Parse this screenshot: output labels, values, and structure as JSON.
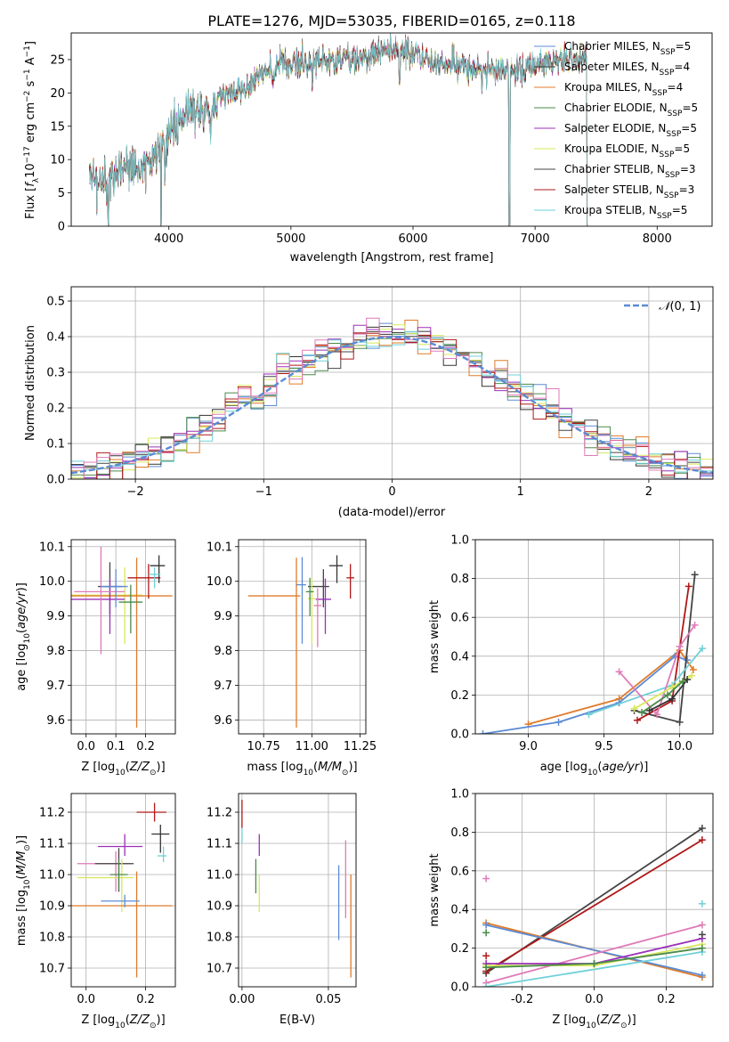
{
  "title": "PLATE=1276, MJD=53035, FIBERID=0165, z=0.118",
  "colors": {
    "chabrier_miles": "#5b8bd4",
    "salpeter_miles": "#333333",
    "kroupa_miles": "#e07b2a",
    "chabrier_elodie": "#4a8a4a",
    "salpeter_elodie": "#9b30b8",
    "kroupa_elodie": "#d8e85a",
    "chabrier_stelib": "#444444",
    "salpeter_stelib": "#b01818",
    "kroupa_stelib": "#6fd0d8",
    "pink": "#e07ab8",
    "gray": "#999999"
  },
  "chart_data": [
    {
      "id": "spectrum",
      "type": "line",
      "xlabel": "wavelength [Angstrom, rest frame]",
      "ylabel": "Flux [f_λ 10^-17 erg cm^-2 s^-1 A^-1]",
      "xlim": [
        3200,
        8450
      ],
      "ylim": [
        0,
        29
      ],
      "xticks": [
        4000,
        5000,
        6000,
        7000,
        8000
      ],
      "yticks": [
        0,
        5,
        10,
        15,
        20,
        25
      ],
      "continuum": {
        "x": [
          3350,
          3500,
          3650,
          3800,
          3950,
          4050,
          4150,
          4300,
          4450,
          4600,
          4800,
          5000,
          5200,
          5400,
          5600,
          5800,
          6000,
          6200,
          6400,
          6600,
          6800,
          7000,
          7200,
          7400
        ],
        "y": [
          6.5,
          6.8,
          9.5,
          8.5,
          12,
          15,
          16.5,
          17.5,
          19.5,
          21,
          23,
          24.5,
          25,
          24.8,
          25.5,
          26.5,
          26,
          24.5,
          24,
          23.5,
          23.5,
          24,
          25,
          24.8
        ]
      },
      "absorption_features": [
        3505,
        3935,
        3969,
        4340,
        5175,
        5890,
        6563,
        6790,
        7430
      ],
      "legend": [
        {
          "label": "Chabrier MILES, N_SSP=5",
          "text": "Chabrier MILES, N",
          "sub": "SSP",
          "val": "=5",
          "color_key": "chabrier_miles"
        },
        {
          "label": "Salpeter MILES, N_SSP=4",
          "text": "Salpeter MILES, N",
          "sub": "SSP",
          "val": "=4",
          "color_key": "salpeter_miles"
        },
        {
          "label": "Kroupa MILES, N_SSP=4",
          "text": "Kroupa MILES, N",
          "sub": "SSP",
          "val": "=4",
          "color_key": "kroupa_miles"
        },
        {
          "label": "Chabrier ELODIE, N_SSP=5",
          "text": "Chabrier ELODIE, N",
          "sub": "SSP",
          "val": "=5",
          "color_key": "chabrier_elodie"
        },
        {
          "label": "Salpeter ELODIE, N_SSP=5",
          "text": "Salpeter ELODIE, N",
          "sub": "SSP",
          "val": "=5",
          "color_key": "salpeter_elodie"
        },
        {
          "label": "Kroupa ELODIE, N_SSP=5",
          "text": "Kroupa ELODIE, N",
          "sub": "SSP",
          "val": "=5",
          "color_key": "kroupa_elodie"
        },
        {
          "label": "Chabrier STELIB, N_SSP=3",
          "text": "Chabrier STELIB, N",
          "sub": "SSP",
          "val": "=3",
          "color_key": "chabrier_stelib"
        },
        {
          "label": "Salpeter STELIB, N_SSP=3",
          "text": "Salpeter STELIB, N",
          "sub": "SSP",
          "val": "=3",
          "color_key": "salpeter_stelib"
        },
        {
          "label": "Kroupa STELIB, N_SSP=5",
          "text": "Kroupa STELIB, N",
          "sub": "SSP",
          "val": "=5",
          "color_key": "kroupa_stelib"
        }
      ]
    },
    {
      "id": "residuals",
      "type": "line",
      "xlabel": "(data-model)/error",
      "ylabel": "Normed distribution",
      "xlim": [
        -2.5,
        2.5
      ],
      "ylim": [
        0,
        0.54
      ],
      "xticks": [
        -2,
        -1,
        0,
        1,
        2
      ],
      "yticks": [
        0.0,
        0.1,
        0.2,
        0.3,
        0.4,
        0.5
      ],
      "grid": true,
      "legend_position": "top-right",
      "legend": [
        {
          "label": "N(0,1)",
          "color_key": "chabrier_miles",
          "style": "dashed"
        }
      ],
      "bin_width": 0.1
    },
    {
      "id": "age_vs_Z",
      "type": "scatter",
      "xlabel": "Z [log10(Z/Z_sun)]",
      "ylabel": "age [log10(age/yr)]",
      "xlim": [
        -0.05,
        0.3
      ],
      "ylim": [
        9.56,
        10.12
      ],
      "xticks": [
        0.0,
        0.1,
        0.2
      ],
      "yticks": [
        9.6,
        9.7,
        9.8,
        9.9,
        10.0,
        10.1
      ],
      "grid": true,
      "points": [
        {
          "x": 0.08,
          "xerr": [
            0.04,
            0.04
          ],
          "y": 9.985,
          "yerr": [
            0.08,
            0.07
          ],
          "color_key": "chabrier_stelib"
        },
        {
          "x": 0.13,
          "xerr": [
            0.18,
            0.06
          ],
          "y": 9.96,
          "yerr": [
            0.14,
            0.08
          ],
          "color_key": "kroupa_elodie"
        },
        {
          "x": 0.17,
          "xerr": [
            0.23,
            0.12
          ],
          "y": 9.958,
          "yerr": [
            0.38,
            0.11
          ],
          "color_key": "kroupa_miles"
        },
        {
          "x": 0.08,
          "xerr": [
            0.13,
            0.05
          ],
          "y": 9.948,
          "yerr": [
            0.1,
            0.06
          ],
          "color_key": "salpeter_elodie"
        },
        {
          "x": 0.05,
          "xerr": [
            0.09,
            0.08
          ],
          "y": 9.97,
          "yerr": [
            0.18,
            0.13
          ],
          "color_key": "pink"
        },
        {
          "x": 0.1,
          "xerr": [
            0.05,
            0.04
          ],
          "y": 9.985,
          "yerr": [
            0.06,
            0.05
          ],
          "color_key": "chabrier_miles"
        },
        {
          "x": 0.21,
          "xerr": [
            0.07,
            0.04
          ],
          "y": 10.01,
          "yerr": [
            0.06,
            0.04
          ],
          "color_key": "salpeter_stelib"
        },
        {
          "x": 0.245,
          "xerr": [
            0.03,
            0.02
          ],
          "y": 10.045,
          "yerr": [
            0.05,
            0.03
          ],
          "color_key": "salpeter_miles"
        },
        {
          "x": 0.23,
          "xerr": [
            0.02,
            0.02
          ],
          "y": 10.02,
          "yerr": [
            0.04,
            0.02
          ],
          "color_key": "kroupa_stelib"
        },
        {
          "x": 0.15,
          "xerr": [
            0.04,
            0.04
          ],
          "y": 9.94,
          "yerr": [
            0.09,
            0.05
          ],
          "color_key": "chabrier_elodie"
        }
      ]
    },
    {
      "id": "age_vs_mass",
      "type": "scatter",
      "xlabel": "mass [log10(M/M_sun)]",
      "ylabel": "",
      "xlim": [
        10.62,
        11.28
      ],
      "ylim": [
        9.56,
        10.12
      ],
      "xticks": [
        10.75,
        11.0,
        11.25
      ],
      "yticks": [
        9.6,
        9.7,
        9.8,
        9.9,
        10.0,
        10.1
      ],
      "grid": true,
      "points": [
        {
          "x": 10.92,
          "xerr": [
            0.25,
            0.02
          ],
          "y": 9.958,
          "yerr": [
            0.38,
            0.11
          ],
          "color_key": "kroupa_miles"
        },
        {
          "x": 10.95,
          "xerr": [
            0.03,
            0.02
          ],
          "y": 9.99,
          "yerr": [
            0.17,
            0.08
          ],
          "color_key": "chabrier_miles"
        },
        {
          "x": 11.06,
          "xerr": [
            0.08,
            0.03
          ],
          "y": 9.985,
          "yerr": [
            0.06,
            0.05
          ],
          "color_key": "chabrier_stelib"
        },
        {
          "x": 11.07,
          "xerr": [
            0.05,
            0.03
          ],
          "y": 9.948,
          "yerr": [
            0.1,
            0.06
          ],
          "color_key": "salpeter_elodie"
        },
        {
          "x": 11.2,
          "xerr": [
            0.02,
            0.02
          ],
          "y": 10.01,
          "yerr": [
            0.06,
            0.04
          ],
          "color_key": "salpeter_stelib"
        },
        {
          "x": 11.13,
          "xerr": [
            0.04,
            0.03
          ],
          "y": 10.045,
          "yerr": [
            0.05,
            0.03
          ],
          "color_key": "salpeter_miles"
        },
        {
          "x": 11.03,
          "xerr": [
            0.02,
            0.02
          ],
          "y": 9.93,
          "yerr": [
            0.12,
            0.05
          ],
          "color_key": "pink"
        },
        {
          "x": 11.0,
          "xerr": [
            0.02,
            0.02
          ],
          "y": 9.95,
          "yerr": [
            0.13,
            0.06
          ],
          "color_key": "kroupa_elodie"
        },
        {
          "x": 10.99,
          "xerr": [
            0.02,
            0.02
          ],
          "y": 9.97,
          "yerr": [
            0.07,
            0.04
          ],
          "color_key": "chabrier_elodie"
        }
      ]
    },
    {
      "id": "weight_vs_age",
      "type": "line",
      "xlabel": "age [log10(age/yr)]",
      "ylabel": "mass weight",
      "xlim": [
        8.65,
        10.22
      ],
      "ylim": [
        0,
        1.0
      ],
      "xticks": [
        9.0,
        9.5,
        10.0
      ],
      "yticks": [
        0.0,
        0.2,
        0.4,
        0.6,
        0.8,
        1.0
      ],
      "grid": true,
      "series": [
        {
          "color_key": "kroupa_miles",
          "x": [
            9.0,
            9.6,
            10.0,
            10.09
          ],
          "y": [
            0.05,
            0.18,
            0.43,
            0.33
          ]
        },
        {
          "color_key": "chabrier_miles",
          "x": [
            8.7,
            9.2,
            9.6,
            9.97,
            10.05
          ],
          "y": [
            0.0,
            0.06,
            0.16,
            0.4,
            0.38
          ]
        },
        {
          "color_key": "chabrier_stelib",
          "x": [
            9.7,
            10.0,
            10.1
          ],
          "y": [
            0.12,
            0.06,
            0.82
          ]
        },
        {
          "color_key": "salpeter_stelib",
          "x": [
            9.72,
            9.95,
            10.06
          ],
          "y": [
            0.07,
            0.17,
            0.76
          ]
        },
        {
          "color_key": "kroupa_stelib",
          "x": [
            9.4,
            9.95,
            10.15
          ],
          "y": [
            0.1,
            0.25,
            0.44
          ]
        },
        {
          "color_key": "pink",
          "x": [
            9.6,
            9.85,
            10.0,
            10.1
          ],
          "y": [
            0.32,
            0.1,
            0.45,
            0.56
          ]
        },
        {
          "color_key": "kroupa_elodie",
          "x": [
            9.7,
            9.95,
            10.08
          ],
          "y": [
            0.13,
            0.24,
            0.3
          ]
        },
        {
          "color_key": "salpeter_miles",
          "x": [
            9.8,
            9.95,
            10.05
          ],
          "y": [
            0.12,
            0.18,
            0.28
          ]
        },
        {
          "color_key": "chabrier_elodie",
          "x": [
            9.75,
            9.92,
            10.02
          ],
          "y": [
            0.11,
            0.2,
            0.27
          ]
        }
      ]
    },
    {
      "id": "mass_vs_Z",
      "type": "scatter",
      "xlabel": "Z [log10(Z/Z_sun)]",
      "ylabel": "mass [log10(M/M_sun)]",
      "xlim": [
        -0.05,
        0.3
      ],
      "ylim": [
        10.64,
        11.26
      ],
      "xticks": [
        0.0,
        0.2
      ],
      "yticks": [
        10.7,
        10.8,
        10.9,
        11.0,
        11.1,
        11.2
      ],
      "grid": true,
      "points": [
        {
          "x": 0.23,
          "xerr": [
            0.06,
            0.04
          ],
          "y": 11.2,
          "yerr": [
            0.03,
            0.03
          ],
          "color_key": "salpeter_stelib"
        },
        {
          "x": 0.25,
          "xerr": [
            0.03,
            0.03
          ],
          "y": 11.13,
          "yerr": [
            0.06,
            0.03
          ],
          "color_key": "salpeter_miles"
        },
        {
          "x": 0.26,
          "xerr": [
            0.02,
            0.01
          ],
          "y": 11.06,
          "yerr": [
            0.02,
            0.03
          ],
          "color_key": "kroupa_stelib"
        },
        {
          "x": 0.13,
          "xerr": [
            0.09,
            0.06
          ],
          "y": 11.09,
          "yerr": [
            0.03,
            0.04
          ],
          "color_key": "salpeter_elodie"
        },
        {
          "x": 0.1,
          "xerr": [
            0.13,
            0.05
          ],
          "y": 11.035,
          "yerr": [
            0.09,
            0.04
          ],
          "color_key": "pink"
        },
        {
          "x": 0.11,
          "xerr": [
            0.08,
            0.05
          ],
          "y": 11.035,
          "yerr": [
            0.09,
            0.05
          ],
          "color_key": "chabrier_stelib"
        },
        {
          "x": 0.12,
          "xerr": [
            0.15,
            0.04
          ],
          "y": 10.99,
          "yerr": [
            0.11,
            0.06
          ],
          "color_key": "kroupa_elodie"
        },
        {
          "x": 0.17,
          "xerr": [
            0.22,
            0.12
          ],
          "y": 10.9,
          "yerr": [
            0.23,
            0.11
          ],
          "color_key": "kroupa_miles"
        },
        {
          "x": 0.13,
          "xerr": [
            0.08,
            0.05
          ],
          "y": 10.915,
          "yerr": [
            0.02,
            0.02
          ],
          "color_key": "chabrier_miles"
        },
        {
          "x": 0.11,
          "xerr": [
            0.03,
            0.03
          ],
          "y": 11.0,
          "yerr": [
            0.05,
            0.05
          ],
          "color_key": "chabrier_elodie"
        }
      ]
    },
    {
      "id": "mass_vs_EBV",
      "type": "scatter",
      "xlabel": "E(B-V)",
      "ylabel": "",
      "xlim": [
        -0.002,
        0.066
      ],
      "ylim": [
        10.64,
        11.26
      ],
      "xticks": [
        0.0,
        0.05
      ],
      "yticks": [
        10.7,
        10.8,
        10.9,
        11.0,
        11.1,
        11.2
      ],
      "grid": true,
      "points": [
        {
          "x": 0.0,
          "y": 11.2,
          "yerr": [
            0.05,
            0.04
          ],
          "color_key": "salpeter_stelib"
        },
        {
          "x": 0.01,
          "y": 11.09,
          "yerr": [
            0.03,
            0.04
          ],
          "color_key": "salpeter_elodie"
        },
        {
          "x": 0.008,
          "y": 11.0,
          "yerr": [
            0.06,
            0.05
          ],
          "color_key": "chabrier_elodie"
        },
        {
          "x": 0.01,
          "y": 10.96,
          "yerr": [
            0.08,
            0.04
          ],
          "color_key": "kroupa_elodie"
        },
        {
          "x": 0.0,
          "y": 11.13,
          "yerr": [
            0.03,
            0.02
          ],
          "color_key": "kroupa_stelib"
        },
        {
          "x": 0.056,
          "y": 10.91,
          "yerr": [
            0.12,
            0.12
          ],
          "color_key": "chabrier_miles"
        },
        {
          "x": 0.06,
          "y": 10.98,
          "yerr": [
            0.12,
            0.13
          ],
          "color_key": "pink"
        },
        {
          "x": 0.063,
          "y": 10.85,
          "yerr": [
            0.18,
            0.15
          ],
          "color_key": "kroupa_miles"
        }
      ]
    },
    {
      "id": "weight_vs_Z",
      "type": "line",
      "xlabel": "Z [log10(Z/Z_sun)]",
      "ylabel": "mass weight",
      "xlim": [
        -0.33,
        0.33
      ],
      "ylim": [
        0,
        1.0
      ],
      "xticks": [
        -0.2,
        0.0,
        0.2
      ],
      "yticks": [
        0.0,
        0.2,
        0.4,
        0.6,
        0.8,
        1.0
      ],
      "grid": true,
      "series": [
        {
          "color_key": "chabrier_stelib",
          "x": [
            -0.3,
            0.3
          ],
          "y": [
            0.07,
            0.82
          ]
        },
        {
          "color_key": "salpeter_stelib",
          "x": [
            -0.3,
            0.3
          ],
          "y": [
            0.08,
            0.76
          ]
        },
        {
          "color_key": "kroupa_miles",
          "x": [
            -0.3,
            0.3
          ],
          "y": [
            0.33,
            0.05
          ]
        },
        {
          "color_key": "chabrier_miles",
          "x": [
            -0.3,
            0.3
          ],
          "y": [
            0.32,
            0.06
          ]
        },
        {
          "color_key": "pink",
          "x": [
            -0.3,
            0.3
          ],
          "y": [
            0.02,
            0.32
          ]
        },
        {
          "color_key": "kroupa_stelib",
          "x": [
            -0.3,
            0.3
          ],
          "y": [
            0.0,
            0.18
          ]
        },
        {
          "color_key": "kroupa_elodie",
          "x": [
            -0.3,
            0.0,
            0.3
          ],
          "y": [
            0.11,
            0.11,
            0.22
          ]
        },
        {
          "color_key": "salpeter_elodie",
          "x": [
            -0.3,
            0.0,
            0.3
          ],
          "y": [
            0.12,
            0.12,
            0.25
          ]
        },
        {
          "color_key": "chabrier_elodie",
          "x": [
            -0.3,
            0.0,
            0.3
          ],
          "y": [
            0.1,
            0.12,
            0.2
          ]
        }
      ],
      "markers": [
        {
          "x": -0.3,
          "y": 0.56,
          "color_key": "pink"
        },
        {
          "x": -0.3,
          "y": 0.28,
          "color_key": "chabrier_elodie"
        },
        {
          "x": -0.3,
          "y": 0.16,
          "color_key": "salpeter_stelib"
        },
        {
          "x": 0.3,
          "y": 0.43,
          "color_key": "kroupa_stelib"
        },
        {
          "x": 0.3,
          "y": 0.27,
          "color_key": "chabrier_stelib"
        }
      ]
    }
  ]
}
